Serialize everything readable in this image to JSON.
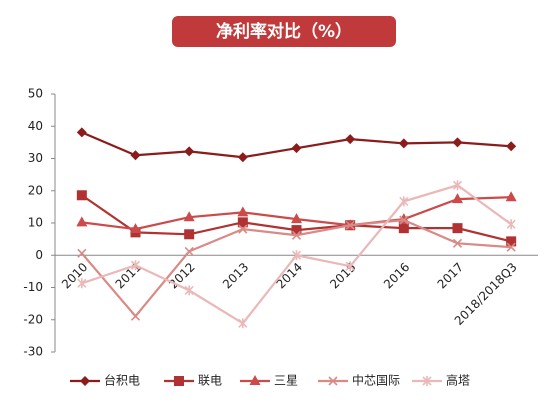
{
  "chart_data": {
    "type": "line",
    "title": "净利率对比（%）",
    "categories": [
      "2010",
      "2011",
      "2012",
      "2013",
      "2014",
      "2015",
      "2016",
      "2017",
      "2018/2018Q3"
    ],
    "series": [
      {
        "name": "台积电",
        "color": "#8b1c1c",
        "marker": "diamond",
        "values": [
          38.1,
          31,
          32.2,
          30.4,
          33.2,
          36,
          34.7,
          35,
          33.8
        ]
      },
      {
        "name": "联电",
        "color": "#b03232",
        "marker": "square",
        "values": [
          18.6,
          7.1,
          6.5,
          10.2,
          7.8,
          9.3,
          8.4,
          8.4,
          4.3
        ]
      },
      {
        "name": "三星",
        "color": "#cc4a4a",
        "marker": "triangle",
        "values": [
          10.2,
          8.1,
          11.8,
          13.3,
          11.2,
          9.3,
          11.2,
          17.4,
          18
        ]
      },
      {
        "name": "中芯国际",
        "color": "#d98a86",
        "marker": "x",
        "values": [
          0.6,
          -18.9,
          1.2,
          8.1,
          6.2,
          9.3,
          10.9,
          3.7,
          2.5
        ]
      },
      {
        "name": "高塔",
        "color": "#eab8b8",
        "marker": "star",
        "values": [
          -8.7,
          -3.1,
          -10.9,
          -21.1,
          0,
          -3.4,
          16.7,
          21.7,
          9.6
        ]
      }
    ],
    "ylim": [
      -30,
      50
    ],
    "yticks": [
      -30,
      -20,
      -10,
      0,
      10,
      20,
      30,
      40,
      50
    ],
    "grid": false
  }
}
